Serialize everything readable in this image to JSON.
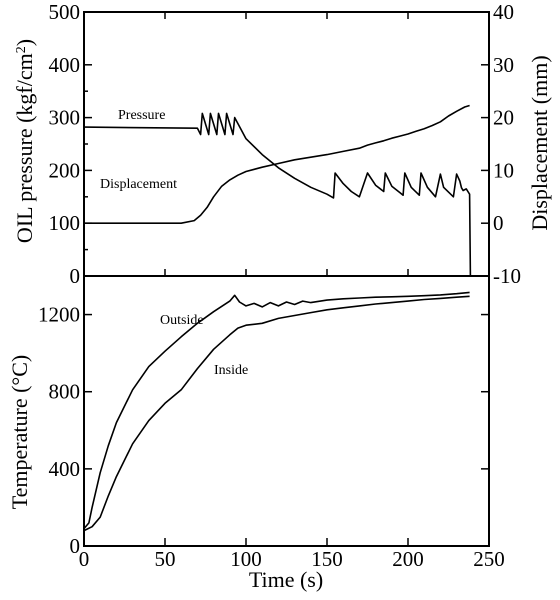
{
  "chart_data": [
    {
      "type": "line",
      "xlabel": "",
      "ylabel": "OIL pressure (kgf/cm",
      "ylabel_superscript": "2",
      "ylabel_close": ")",
      "y2label": "Displacement (mm)",
      "xlim": [
        0,
        250
      ],
      "ylim": [
        0,
        500
      ],
      "y2lim": [
        -10,
        40
      ],
      "yticks": [
        0,
        100,
        200,
        300,
        400,
        500
      ],
      "y2ticks": [
        -10,
        0,
        10,
        20,
        30,
        40
      ],
      "series": [
        {
          "name": "Pressure",
          "axis": "left",
          "x": [
            0,
            70,
            72,
            73,
            77,
            78,
            82,
            83,
            87,
            88,
            92,
            93,
            100,
            110,
            120,
            130,
            140,
            150,
            154,
            155,
            160,
            165,
            170,
            175,
            180,
            185,
            186,
            190,
            195,
            197,
            198,
            202,
            207,
            208,
            212,
            217,
            220,
            222,
            228,
            230,
            232,
            233,
            234,
            236,
            237,
            238,
            238.5
          ],
          "y": [
            282,
            280,
            268,
            308,
            268,
            308,
            268,
            308,
            268,
            308,
            268,
            300,
            260,
            230,
            205,
            185,
            168,
            155,
            148,
            195,
            175,
            160,
            150,
            195,
            172,
            160,
            195,
            170,
            158,
            153,
            195,
            168,
            153,
            195,
            168,
            150,
            193,
            168,
            150,
            193,
            180,
            167,
            162,
            165,
            160,
            155,
            0
          ]
        },
        {
          "name": "Displacement",
          "axis": "right",
          "x": [
            0,
            20,
            40,
            60,
            68,
            72,
            76,
            80,
            85,
            90,
            95,
            100,
            110,
            120,
            130,
            140,
            150,
            160,
            170,
            175,
            180,
            185,
            190,
            195,
            200,
            205,
            210,
            215,
            220,
            225,
            230,
            235,
            238
          ],
          "y": [
            0,
            0,
            0,
            0,
            0.5,
            1.5,
            3,
            5,
            7,
            8.2,
            9.1,
            9.8,
            10.6,
            11.3,
            12,
            12.5,
            13,
            13.6,
            14.2,
            14.8,
            15.2,
            15.6,
            16.1,
            16.5,
            16.9,
            17.4,
            17.9,
            18.5,
            19.2,
            20.3,
            21.2,
            22,
            22.3
          ]
        }
      ]
    },
    {
      "type": "line",
      "xlabel": "Time (s)",
      "ylabel": "Temperature (",
      "ylabel_unit": "°C",
      "ylabel_close": ")",
      "xlim": [
        0,
        250
      ],
      "ylim": [
        0,
        1400
      ],
      "xticks": [
        0,
        50,
        100,
        150,
        200,
        250
      ],
      "yticks": [
        0,
        400,
        800,
        1200
      ],
      "series": [
        {
          "name": "Outside",
          "x": [
            0,
            3,
            5,
            10,
            15,
            20,
            30,
            40,
            50,
            60,
            70,
            80,
            90,
            93,
            96,
            100,
            105,
            110,
            115,
            120,
            125,
            130,
            135,
            140,
            150,
            160,
            170,
            180,
            190,
            200,
            210,
            220,
            230,
            238
          ],
          "y": [
            90,
            120,
            200,
            380,
            520,
            640,
            810,
            930,
            1010,
            1085,
            1155,
            1215,
            1270,
            1300,
            1265,
            1245,
            1258,
            1240,
            1262,
            1245,
            1265,
            1252,
            1270,
            1262,
            1275,
            1282,
            1286,
            1290,
            1292,
            1295,
            1298,
            1302,
            1308,
            1315
          ]
        },
        {
          "name": "Inside",
          "x": [
            0,
            5,
            10,
            15,
            20,
            30,
            40,
            50,
            60,
            70,
            80,
            90,
            95,
            100,
            110,
            120,
            130,
            140,
            150,
            160,
            170,
            180,
            190,
            200,
            210,
            220,
            230,
            238
          ],
          "y": [
            80,
            100,
            150,
            260,
            360,
            530,
            650,
            740,
            810,
            920,
            1020,
            1095,
            1130,
            1145,
            1155,
            1180,
            1195,
            1210,
            1225,
            1235,
            1245,
            1255,
            1262,
            1270,
            1278,
            1284,
            1290,
            1295
          ]
        }
      ]
    }
  ]
}
